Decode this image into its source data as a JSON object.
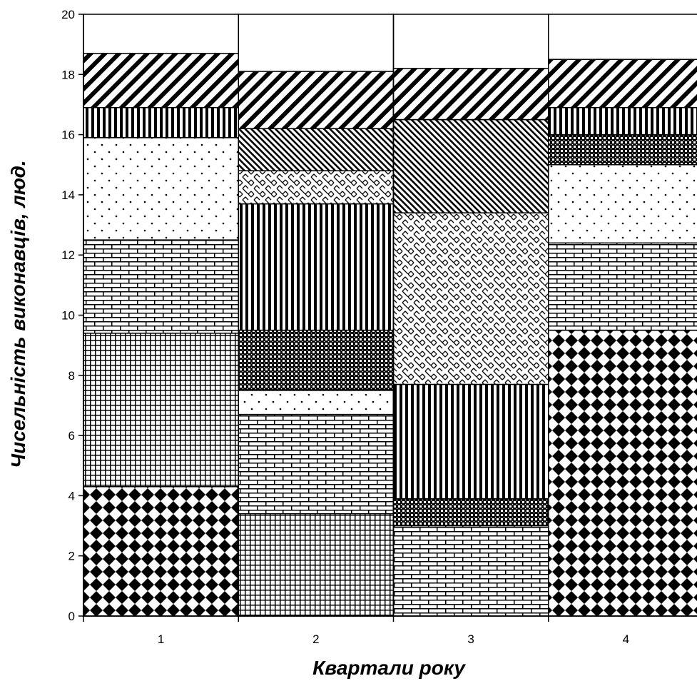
{
  "chart_data": {
    "type": "bar",
    "stacked": true,
    "categories": [
      "1",
      "2",
      "3",
      "4"
    ],
    "xlabel": "Квартали   року",
    "ylabel": "Чисельність   виконавців,  люд.",
    "ylim": [
      0,
      20
    ],
    "yticks": [
      0,
      2,
      4,
      6,
      8,
      10,
      12,
      14,
      16,
      18,
      20
    ],
    "grid": false,
    "legend": "none",
    "stacks": [
      {
        "category": "1",
        "segments": [
          {
            "pattern": "diamond",
            "value": 4.3
          },
          {
            "pattern": "grid",
            "value": 5.1
          },
          {
            "pattern": "brick",
            "value": 3.1
          },
          {
            "pattern": "dots",
            "value": 3.4
          },
          {
            "pattern": "vertical",
            "value": 1.0
          },
          {
            "pattern": "diag-wide",
            "value": 1.8
          }
        ]
      },
      {
        "category": "2",
        "segments": [
          {
            "pattern": "grid",
            "value": 3.4
          },
          {
            "pattern": "brick",
            "value": 3.3
          },
          {
            "pattern": "dots",
            "value": 0.8
          },
          {
            "pattern": "checker",
            "value": 2.0
          },
          {
            "pattern": "vertical",
            "value": 4.2
          },
          {
            "pattern": "weave",
            "value": 1.1
          },
          {
            "pattern": "diag-dense",
            "value": 1.4
          },
          {
            "pattern": "diag-wide",
            "value": 1.9
          }
        ]
      },
      {
        "category": "3",
        "segments": [
          {
            "pattern": "brick",
            "value": 3.0
          },
          {
            "pattern": "checker",
            "value": 0.9
          },
          {
            "pattern": "vertical",
            "value": 3.8
          },
          {
            "pattern": "weave",
            "value": 5.7
          },
          {
            "pattern": "diag-dense",
            "value": 3.1
          },
          {
            "pattern": "diag-wide",
            "value": 1.7
          }
        ]
      },
      {
        "category": "4",
        "segments": [
          {
            "pattern": "diamond",
            "value": 9.5
          },
          {
            "pattern": "brick",
            "value": 2.9
          },
          {
            "pattern": "dots",
            "value": 2.6
          },
          {
            "pattern": "checker",
            "value": 1.0
          },
          {
            "pattern": "vertical",
            "value": 0.9
          },
          {
            "pattern": "diag-wide",
            "value": 1.6
          }
        ]
      }
    ]
  }
}
